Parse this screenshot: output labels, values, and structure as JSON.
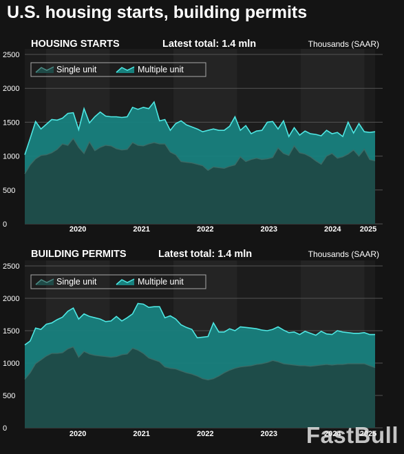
{
  "page_title": "U.S. housing starts, building permits",
  "watermark": "FastBull",
  "colors": {
    "background": "#141414",
    "single_fill": "#1f4a47",
    "single_line": "#3a6b66",
    "multiple_fill": "#18817e",
    "multiple_line": "#4fe8e4",
    "grid": "#555555"
  },
  "chart_data": [
    {
      "type": "area",
      "title": "HOUSING STARTS",
      "subtitle": "Latest total: 1.4 mln",
      "unit_label": "Thousands (SAAR)",
      "x_start": "2019-09",
      "x_end": "2025-03",
      "x_tick_labels": [
        "2020",
        "2021",
        "2022",
        "2023",
        "2024",
        "2025"
      ],
      "ylim": [
        0,
        2500
      ],
      "y_ticks": [
        "0",
        "500",
        "1000",
        "1500",
        "2000",
        "2500"
      ],
      "legend_position": "top-left",
      "series": [
        {
          "name": "Single unit",
          "values": [
            740,
            870,
            960,
            1010,
            1020,
            1050,
            1100,
            1180,
            1160,
            1260,
            1130,
            1040,
            1210,
            1080,
            1130,
            1160,
            1150,
            1110,
            1090,
            1100,
            1200,
            1160,
            1150,
            1180,
            1200,
            1180,
            1180,
            1060,
            1020,
            920,
            910,
            900,
            880,
            860,
            790,
            840,
            830,
            820,
            850,
            870,
            990,
            920,
            950,
            970,
            950,
            960,
            980,
            1120,
            1040,
            1010,
            1150,
            1050,
            1030,
            990,
            930,
            880,
            1000,
            1040,
            970,
            990,
            1030,
            1090,
            1000,
            1100,
            950,
            930
          ]
        },
        {
          "name": "Multiple unit",
          "values": [
            1020,
            1260,
            1510,
            1400,
            1470,
            1540,
            1530,
            1560,
            1630,
            1640,
            1390,
            1700,
            1490,
            1580,
            1650,
            1590,
            1580,
            1580,
            1570,
            1580,
            1720,
            1690,
            1720,
            1700,
            1800,
            1520,
            1540,
            1380,
            1480,
            1520,
            1460,
            1430,
            1400,
            1360,
            1380,
            1400,
            1380,
            1380,
            1440,
            1580,
            1380,
            1450,
            1330,
            1370,
            1380,
            1500,
            1510,
            1400,
            1520,
            1290,
            1420,
            1310,
            1370,
            1330,
            1320,
            1300,
            1380,
            1330,
            1350,
            1290,
            1500,
            1340,
            1480,
            1360,
            1350,
            1360
          ]
        }
      ]
    },
    {
      "type": "area",
      "title": "BUILDING PERMITS",
      "subtitle": "Latest total: 1.4 mln",
      "unit_label": "Thousands (SAAR)",
      "x_start": "2019-09",
      "x_end": "2025-03",
      "x_tick_labels": [
        "2020",
        "2021",
        "2022",
        "2023",
        "2024",
        "2025"
      ],
      "ylim": [
        0,
        2500
      ],
      "y_ticks": [
        "0",
        "500",
        "1000",
        "1500",
        "2000",
        "2500"
      ],
      "legend_position": "top-left",
      "series": [
        {
          "name": "Single unit",
          "values": [
            750,
            850,
            990,
            1050,
            1110,
            1150,
            1150,
            1160,
            1220,
            1250,
            1090,
            1180,
            1140,
            1120,
            1110,
            1100,
            1090,
            1100,
            1130,
            1140,
            1230,
            1200,
            1150,
            1080,
            1050,
            1020,
            940,
            920,
            910,
            880,
            850,
            830,
            800,
            760,
            740,
            760,
            800,
            850,
            890,
            920,
            940,
            950,
            960,
            980,
            990,
            1010,
            1040,
            1020,
            990,
            980,
            970,
            960,
            960,
            950,
            960,
            970,
            980,
            970,
            980,
            980,
            990,
            990,
            990,
            990,
            960,
            930
          ]
        },
        {
          "name": "Multiple unit",
          "values": [
            1280,
            1340,
            1540,
            1520,
            1600,
            1620,
            1670,
            1710,
            1800,
            1850,
            1680,
            1760,
            1720,
            1700,
            1680,
            1640,
            1650,
            1720,
            1650,
            1700,
            1760,
            1920,
            1910,
            1860,
            1870,
            1870,
            1700,
            1730,
            1680,
            1590,
            1550,
            1520,
            1390,
            1400,
            1410,
            1620,
            1480,
            1480,
            1530,
            1500,
            1560,
            1550,
            1540,
            1530,
            1510,
            1500,
            1520,
            1560,
            1510,
            1470,
            1480,
            1440,
            1490,
            1460,
            1430,
            1490,
            1450,
            1440,
            1500,
            1480,
            1470,
            1460,
            1460,
            1470,
            1440,
            1440
          ]
        }
      ]
    }
  ]
}
